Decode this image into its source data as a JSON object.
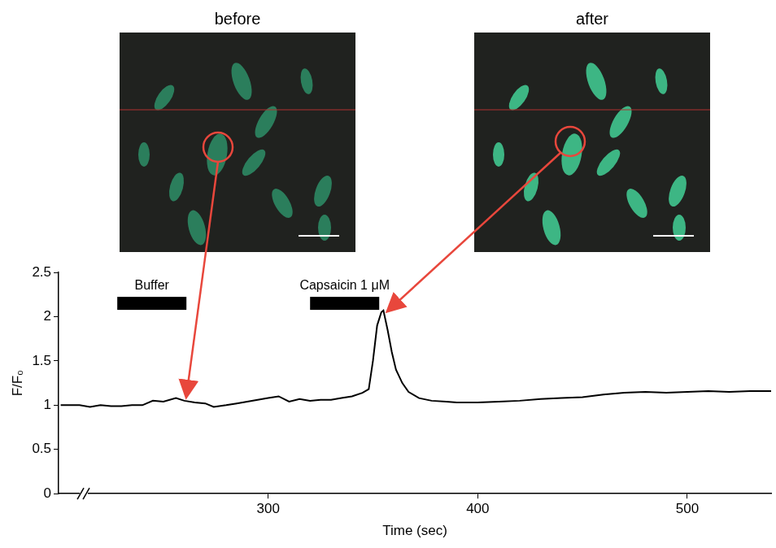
{
  "chart_data": {
    "type": "line",
    "x": [
      201,
      205,
      210,
      215,
      220,
      225,
      230,
      235,
      240,
      245,
      250,
      256,
      260,
      265,
      270,
      274,
      280,
      285,
      290,
      295,
      300,
      305,
      310,
      315,
      320,
      325,
      330,
      335,
      340,
      345,
      348,
      350,
      352,
      354,
      355,
      357,
      359,
      361,
      364,
      367,
      372,
      378,
      385,
      390,
      400,
      410,
      420,
      430,
      440,
      450,
      460,
      470,
      480,
      490,
      500,
      510,
      520,
      530,
      540
    ],
    "values": [
      1.0,
      1.0,
      1.0,
      0.98,
      1.0,
      0.99,
      0.99,
      1.0,
      1.0,
      1.05,
      1.04,
      1.08,
      1.05,
      1.03,
      1.02,
      0.98,
      1.0,
      1.02,
      1.04,
      1.06,
      1.08,
      1.1,
      1.04,
      1.07,
      1.05,
      1.06,
      1.06,
      1.08,
      1.1,
      1.14,
      1.18,
      1.5,
      1.9,
      2.05,
      2.07,
      1.85,
      1.6,
      1.4,
      1.25,
      1.15,
      1.08,
      1.05,
      1.04,
      1.03,
      1.03,
      1.04,
      1.05,
      1.07,
      1.08,
      1.09,
      1.12,
      1.14,
      1.15,
      1.14,
      1.15,
      1.16,
      1.15,
      1.16,
      1.16
    ],
    "color": "#000000",
    "xlim": [
      200,
      540
    ],
    "xticks": [
      300,
      400,
      500
    ],
    "ylim": [
      0,
      2.5
    ],
    "yticks": [
      0,
      0.5,
      1,
      1.5,
      2,
      2.5
    ],
    "x_label": "Time (sec)",
    "y_label": "F/F₀",
    "grid": false,
    "annotations": [
      {
        "label": "Buffer",
        "x": [
          228,
          261
        ],
        "y": 2.15
      },
      {
        "label": "Capsaicin 1 μM",
        "x": [
          320,
          353
        ],
        "y": 2.15
      }
    ],
    "images": [
      {
        "title": "before"
      },
      {
        "title": "after"
      }
    ]
  }
}
